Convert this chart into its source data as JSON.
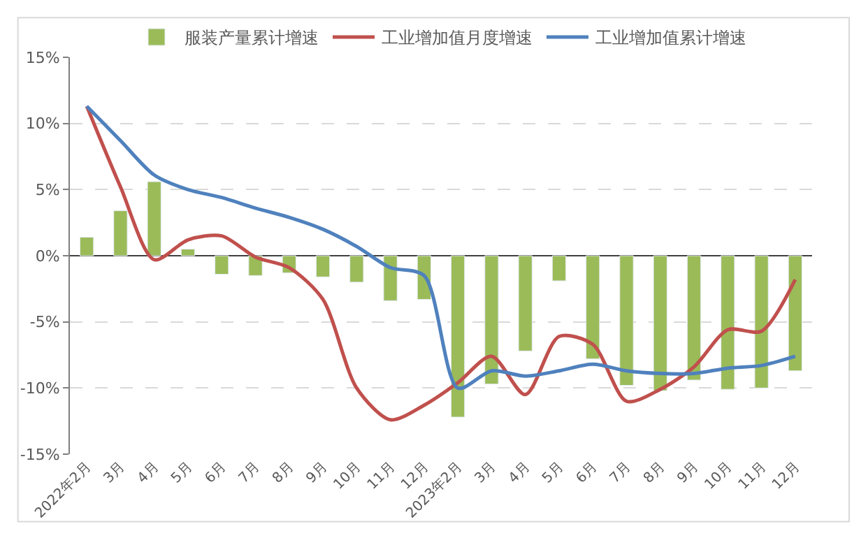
{
  "chart_data": {
    "type": "bar",
    "categories": [
      "2022年2月",
      "3月",
      "4月",
      "5月",
      "6月",
      "7月",
      "8月",
      "9月",
      "10月",
      "11月",
      "12月",
      "2023年2月",
      "3月",
      "4月",
      "5月",
      "6月",
      "7月",
      "8月",
      "9月",
      "10月",
      "11月",
      "12月"
    ],
    "series": [
      {
        "name": "服装产量累计增速",
        "color": "#9bbb59",
        "values": [
          1.4,
          3.4,
          5.6,
          0.5,
          -1.4,
          -1.5,
          -1.3,
          -1.6,
          -2.0,
          -3.4,
          -3.3,
          -12.2,
          -9.7,
          -7.2,
          -1.9,
          -7.8,
          -9.8,
          -10.2,
          -9.4,
          -10.1,
          -10.0,
          -8.7
        ]
      },
      {
        "name": "工业增加值月度增速",
        "color": "#c0504d",
        "type": "line",
        "values": [
          11.3,
          5.2,
          -0.3,
          1.2,
          1.5,
          -0.1,
          -0.9,
          -3.3,
          -10.0,
          -12.4,
          -11.3,
          -9.6,
          -7.6,
          -10.5,
          -6.1,
          -6.7,
          -11.0,
          -10.1,
          -8.4,
          -5.6,
          -5.7,
          -1.8
        ]
      },
      {
        "name": "工业增加值累计增速",
        "color": "#4f81bd",
        "type": "line",
        "values": [
          11.3,
          8.7,
          6.1,
          5.0,
          4.4,
          3.6,
          2.9,
          2.0,
          0.7,
          -0.9,
          -1.5,
          -10.0,
          -8.7,
          -9.1,
          -8.7,
          -8.2,
          -8.7,
          -8.9,
          -8.9,
          -8.5,
          -8.3,
          -7.6
        ]
      }
    ],
    "ylim": [
      -15,
      15
    ],
    "yticks": [
      {
        "value": -15,
        "label": "-15%"
      },
      {
        "value": -10,
        "label": "-10%"
      },
      {
        "value": -5,
        "label": "-5%"
      },
      {
        "value": 0,
        "label": "0%"
      },
      {
        "value": 5,
        "label": "5%"
      },
      {
        "value": 10,
        "label": "10%"
      },
      {
        "value": 15,
        "label": "15%"
      }
    ],
    "grid": "y",
    "legend": "top",
    "marker": "none",
    "line_style": "solid"
  }
}
